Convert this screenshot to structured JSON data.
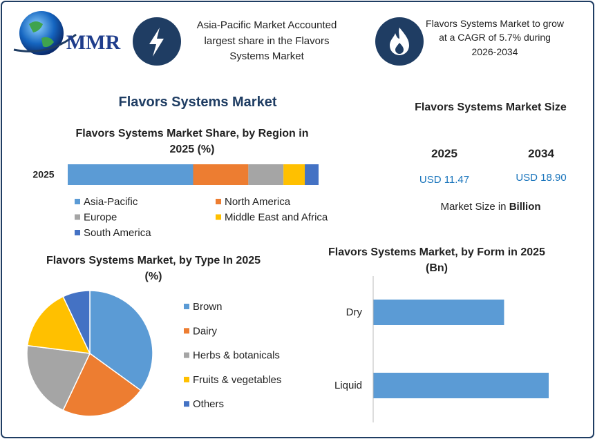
{
  "header": {
    "logo_text": "MMR",
    "note_left": "Asia-Pacific Market Accounted largest share in the Flavors Systems Market",
    "note_right": "Flavors Systems Market to grow at a CAGR of 5.7% during 2026-2034"
  },
  "title": "Flavors Systems Market",
  "market_size": {
    "title": "Flavors Systems Market Size",
    "years": [
      "2025",
      "2034"
    ],
    "values": [
      "USD 11.47",
      "USD 18.90"
    ],
    "note": "Market Size in",
    "note_unit": "Billion"
  },
  "chart_data": [
    {
      "type": "stacked_bar",
      "title": "Flavors Systems Market Share, by Region in 2025 (%)",
      "categories": [
        "2025"
      ],
      "series": [
        {
          "name": "Asia-Pacific",
          "color": "#5b9bd5",
          "values": [
            50
          ]
        },
        {
          "name": "North America",
          "color": "#ed7d31",
          "values": [
            22
          ]
        },
        {
          "name": "Europe",
          "color": "#a5a5a5",
          "values": [
            14
          ]
        },
        {
          "name": "Middle East and Africa",
          "color": "#ffc000",
          "values": [
            8.5
          ]
        },
        {
          "name": "South America",
          "color": "#4472c4",
          "values": [
            5.5
          ]
        }
      ]
    },
    {
      "type": "pie",
      "title": "Flavors Systems Market, by Type In 2025 (%)",
      "categories": [
        "Brown",
        "Dairy",
        "Herbs & botanicals",
        "Fruits & vegetables",
        "Others"
      ],
      "values": [
        35,
        22,
        20,
        16,
        7
      ],
      "colors": [
        "#5b9bd5",
        "#ed7d31",
        "#a5a5a5",
        "#ffc000",
        "#4472c4"
      ]
    },
    {
      "type": "bar",
      "title": "Flavors Systems Market, by Form  in 2025 (Bn)",
      "categories": [
        "Dry",
        "Liquid"
      ],
      "values": [
        4.9,
        6.57
      ],
      "color": "#5b9bd5"
    }
  ]
}
